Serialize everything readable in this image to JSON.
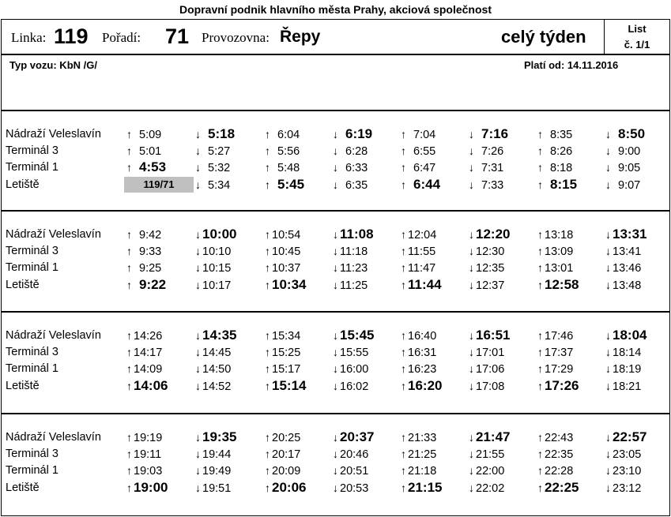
{
  "header": {
    "company": "Dopravní podnik hlavního města Prahy, akciová společnost",
    "line_label": "Linka:",
    "line_number": "119",
    "order_label": "Pořadí:",
    "order_number": "71",
    "depot_label": "Provozovna:",
    "depot_name": "Řepy",
    "validity_days": "celý týden",
    "sheet_label": "List",
    "sheet_number": "č. 1/1"
  },
  "info": {
    "vehicle_type": "Typ vozu: KbN /G/",
    "valid_from": "Platí od: 14.11.2016"
  },
  "stops": [
    "Nádraží Veleslavín",
    "Terminál 3",
    "Terminál 1",
    "Letiště"
  ],
  "block_marker": "119/71",
  "blocks": [
    {
      "rows": [
        [
          [
            "↑",
            "5:09",
            0
          ],
          [
            "↓",
            "5:18",
            1
          ],
          [
            "↑",
            "6:04",
            0
          ],
          [
            "↓",
            "6:19",
            1
          ],
          [
            "↑",
            "7:04",
            0
          ],
          [
            "↓",
            "7:16",
            1
          ],
          [
            "↑",
            "8:35",
            0
          ],
          [
            "↓",
            "8:50",
            1
          ]
        ],
        [
          [
            "↑",
            "5:01",
            0
          ],
          [
            "↓",
            "5:27",
            0
          ],
          [
            "↑",
            "5:56",
            0
          ],
          [
            "↓",
            "6:28",
            0
          ],
          [
            "↑",
            "6:55",
            0
          ],
          [
            "↓",
            "7:26",
            0
          ],
          [
            "↑",
            "8:26",
            0
          ],
          [
            "↓",
            "9:00",
            0
          ]
        ],
        [
          [
            "↑",
            "4:53",
            1
          ],
          [
            "↓",
            "5:32",
            0
          ],
          [
            "↑",
            "5:48",
            0
          ],
          [
            "↓",
            "6:33",
            0
          ],
          [
            "↑",
            "6:47",
            0
          ],
          [
            "↓",
            "7:31",
            0
          ],
          [
            "↑",
            "8:18",
            0
          ],
          [
            "↓",
            "9:05",
            0
          ]
        ],
        [
          [
            "",
            "",
            0
          ],
          [
            "↓",
            "5:34",
            0
          ],
          [
            "↑",
            "5:45",
            1
          ],
          [
            "↓",
            "6:35",
            0
          ],
          [
            "↑",
            "6:44",
            1
          ],
          [
            "↓",
            "7:33",
            0
          ],
          [
            "↑",
            "8:15",
            1
          ],
          [
            "↓",
            "9:07",
            0
          ]
        ]
      ]
    },
    {
      "rows": [
        [
          [
            "↑",
            "9:42",
            0
          ],
          [
            "↓",
            "10:00",
            1
          ],
          [
            "↑",
            "10:54",
            0
          ],
          [
            "↓",
            "11:08",
            1
          ],
          [
            "↑",
            "12:04",
            0
          ],
          [
            "↓",
            "12:20",
            1
          ],
          [
            "↑",
            "13:18",
            0
          ],
          [
            "↓",
            "13:31",
            1
          ]
        ],
        [
          [
            "↑",
            "9:33",
            0
          ],
          [
            "↓",
            "10:10",
            0
          ],
          [
            "↑",
            "10:45",
            0
          ],
          [
            "↓",
            "11:18",
            0
          ],
          [
            "↑",
            "11:55",
            0
          ],
          [
            "↓",
            "12:30",
            0
          ],
          [
            "↑",
            "13:09",
            0
          ],
          [
            "↓",
            "13:41",
            0
          ]
        ],
        [
          [
            "↑",
            "9:25",
            0
          ],
          [
            "↓",
            "10:15",
            0
          ],
          [
            "↑",
            "10:37",
            0
          ],
          [
            "↓",
            "11:23",
            0
          ],
          [
            "↑",
            "11:47",
            0
          ],
          [
            "↓",
            "12:35",
            0
          ],
          [
            "↑",
            "13:01",
            0
          ],
          [
            "↓",
            "13:46",
            0
          ]
        ],
        [
          [
            "↑",
            "9:22",
            1
          ],
          [
            "↓",
            "10:17",
            0
          ],
          [
            "↑",
            "10:34",
            1
          ],
          [
            "↓",
            "11:25",
            0
          ],
          [
            "↑",
            "11:44",
            1
          ],
          [
            "↓",
            "12:37",
            0
          ],
          [
            "↑",
            "12:58",
            1
          ],
          [
            "↓",
            "13:48",
            0
          ]
        ]
      ]
    },
    {
      "rows": [
        [
          [
            "↑",
            "14:26",
            0
          ],
          [
            "↓",
            "14:35",
            1
          ],
          [
            "↑",
            "15:34",
            0
          ],
          [
            "↓",
            "15:45",
            1
          ],
          [
            "↑",
            "16:40",
            0
          ],
          [
            "↓",
            "16:51",
            1
          ],
          [
            "↑",
            "17:46",
            0
          ],
          [
            "↓",
            "18:04",
            1
          ]
        ],
        [
          [
            "↑",
            "14:17",
            0
          ],
          [
            "↓",
            "14:45",
            0
          ],
          [
            "↑",
            "15:25",
            0
          ],
          [
            "↓",
            "15:55",
            0
          ],
          [
            "↑",
            "16:31",
            0
          ],
          [
            "↓",
            "17:01",
            0
          ],
          [
            "↑",
            "17:37",
            0
          ],
          [
            "↓",
            "18:14",
            0
          ]
        ],
        [
          [
            "↑",
            "14:09",
            0
          ],
          [
            "↓",
            "14:50",
            0
          ],
          [
            "↑",
            "15:17",
            0
          ],
          [
            "↓",
            "16:00",
            0
          ],
          [
            "↑",
            "16:23",
            0
          ],
          [
            "↓",
            "17:06",
            0
          ],
          [
            "↑",
            "17:29",
            0
          ],
          [
            "↓",
            "18:19",
            0
          ]
        ],
        [
          [
            "↑",
            "14:06",
            1
          ],
          [
            "↓",
            "14:52",
            0
          ],
          [
            "↑",
            "15:14",
            1
          ],
          [
            "↓",
            "16:02",
            0
          ],
          [
            "↑",
            "16:20",
            1
          ],
          [
            "↓",
            "17:08",
            0
          ],
          [
            "↑",
            "17:26",
            1
          ],
          [
            "↓",
            "18:21",
            0
          ]
        ]
      ]
    },
    {
      "rows": [
        [
          [
            "↑",
            "19:19",
            0
          ],
          [
            "↓",
            "19:35",
            1
          ],
          [
            "↑",
            "20:25",
            0
          ],
          [
            "↓",
            "20:37",
            1
          ],
          [
            "↑",
            "21:33",
            0
          ],
          [
            "↓",
            "21:47",
            1
          ],
          [
            "↑",
            "22:43",
            0
          ],
          [
            "↓",
            "22:57",
            1
          ]
        ],
        [
          [
            "↑",
            "19:11",
            0
          ],
          [
            "↓",
            "19:44",
            0
          ],
          [
            "↑",
            "20:17",
            0
          ],
          [
            "↓",
            "20:46",
            0
          ],
          [
            "↑",
            "21:25",
            0
          ],
          [
            "↓",
            "21:55",
            0
          ],
          [
            "↑",
            "22:35",
            0
          ],
          [
            "↓",
            "23:05",
            0
          ]
        ],
        [
          [
            "↑",
            "19:03",
            0
          ],
          [
            "↓",
            "19:49",
            0
          ],
          [
            "↑",
            "20:09",
            0
          ],
          [
            "↓",
            "20:51",
            0
          ],
          [
            "↑",
            "21:18",
            0
          ],
          [
            "↓",
            "22:00",
            0
          ],
          [
            "↑",
            "22:28",
            0
          ],
          [
            "↓",
            "23:10",
            0
          ]
        ],
        [
          [
            "↑",
            "19:00",
            1
          ],
          [
            "↓",
            "19:51",
            0
          ],
          [
            "↑",
            "20:06",
            1
          ],
          [
            "↓",
            "20:53",
            0
          ],
          [
            "↑",
            "21:15",
            1
          ],
          [
            "↓",
            "22:02",
            0
          ],
          [
            "↑",
            "22:25",
            1
          ],
          [
            "↓",
            "23:12",
            0
          ]
        ]
      ]
    }
  ]
}
